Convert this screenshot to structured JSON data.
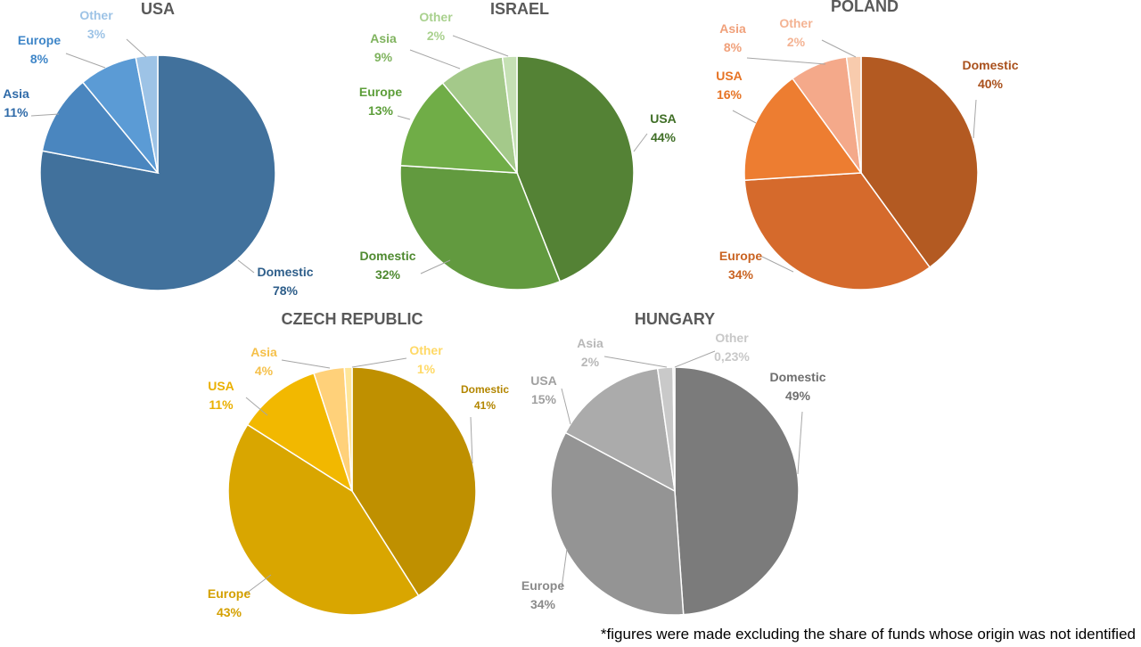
{
  "chart_data": [
    {
      "type": "pie",
      "title": "USA",
      "slices": [
        {
          "label": "Domestic",
          "value": 78,
          "value_text": "78%",
          "color": "#41719c"
        },
        {
          "label": "Asia",
          "value": 11,
          "value_text": "11%",
          "color": "#4a86bf"
        },
        {
          "label": "Europe",
          "value": 8,
          "value_text": "8%",
          "color": "#5b9bd5"
        },
        {
          "label": "Other",
          "value": 3,
          "value_text": "3%",
          "color": "#9dc3e6"
        }
      ],
      "label_colors": [
        "#2e5e8a",
        "#2e6aa8",
        "#3f86c8",
        "#9dc3e6"
      ]
    },
    {
      "type": "pie",
      "title": "ISRAEL",
      "slices": [
        {
          "label": "USA",
          "value": 44,
          "value_text": "44%",
          "color": "#548235"
        },
        {
          "label": "Domestic",
          "value": 32,
          "value_text": "32%",
          "color": "#629a3f"
        },
        {
          "label": "Europe",
          "value": 13,
          "value_text": "13%",
          "color": "#70ad47"
        },
        {
          "label": "Asia",
          "value": 9,
          "value_text": "9%",
          "color": "#a4c98a"
        },
        {
          "label": "Other",
          "value": 2,
          "value_text": "2%",
          "color": "#c5e0b4"
        }
      ],
      "label_colors": [
        "#3f6e26",
        "#4f8a30",
        "#5d9e3a",
        "#7fb35e",
        "#a9d18e"
      ]
    },
    {
      "type": "pie",
      "title": "POLAND",
      "slices": [
        {
          "label": "Domestic",
          "value": 40,
          "value_text": "40%",
          "color": "#b35a22"
        },
        {
          "label": "Europe",
          "value": 34,
          "value_text": "34%",
          "color": "#d56a2c"
        },
        {
          "label": "USA",
          "value": 16,
          "value_text": "16%",
          "color": "#ed7d31"
        },
        {
          "label": "Asia",
          "value": 8,
          "value_text": "8%",
          "color": "#f4a98a"
        },
        {
          "label": "Other",
          "value": 2,
          "value_text": "2%",
          "color": "#f8cbad"
        }
      ],
      "label_colors": [
        "#a9501c",
        "#c96322",
        "#e67324",
        "#f0a07a",
        "#f4b393"
      ]
    },
    {
      "type": "pie",
      "title": "CZECH REPUBLIC",
      "slices": [
        {
          "label": "Domestic",
          "value": 41,
          "value_text": "41%",
          "color": "#bf9000"
        },
        {
          "label": "Europe",
          "value": 43,
          "value_text": "43%",
          "color": "#d9a600"
        },
        {
          "label": "USA",
          "value": 11,
          "value_text": "11%",
          "color": "#f2b800"
        },
        {
          "label": "Asia",
          "value": 4,
          "value_text": "4%",
          "color": "#ffd17a"
        },
        {
          "label": "Other",
          "value": 1,
          "value_text": "1%",
          "color": "#ffe699"
        }
      ],
      "label_colors": [
        "#b38600",
        "#d4a000",
        "#eab000",
        "#f5c04a",
        "#ffd966"
      ]
    },
    {
      "type": "pie",
      "title": "HUNGARY",
      "slices": [
        {
          "label": "Domestic",
          "value": 49,
          "value_text": "49%",
          "color": "#7b7b7b"
        },
        {
          "label": "Europe",
          "value": 34,
          "value_text": "34%",
          "color": "#949494"
        },
        {
          "label": "USA",
          "value": 15,
          "value_text": "15%",
          "color": "#ababab"
        },
        {
          "label": "Asia",
          "value": 2,
          "value_text": "2%",
          "color": "#c9c9c9"
        },
        {
          "label": "Other",
          "value": 0.23,
          "value_text": "0,23%",
          "color": "#d9d9d9"
        }
      ],
      "label_colors": [
        "#6e6e6e",
        "#8a8a8a",
        "#a0a0a0",
        "#b8b8b8",
        "#c8c8c8"
      ]
    }
  ],
  "footnote": "*figures were made excluding the share of funds whose origin was not identified"
}
